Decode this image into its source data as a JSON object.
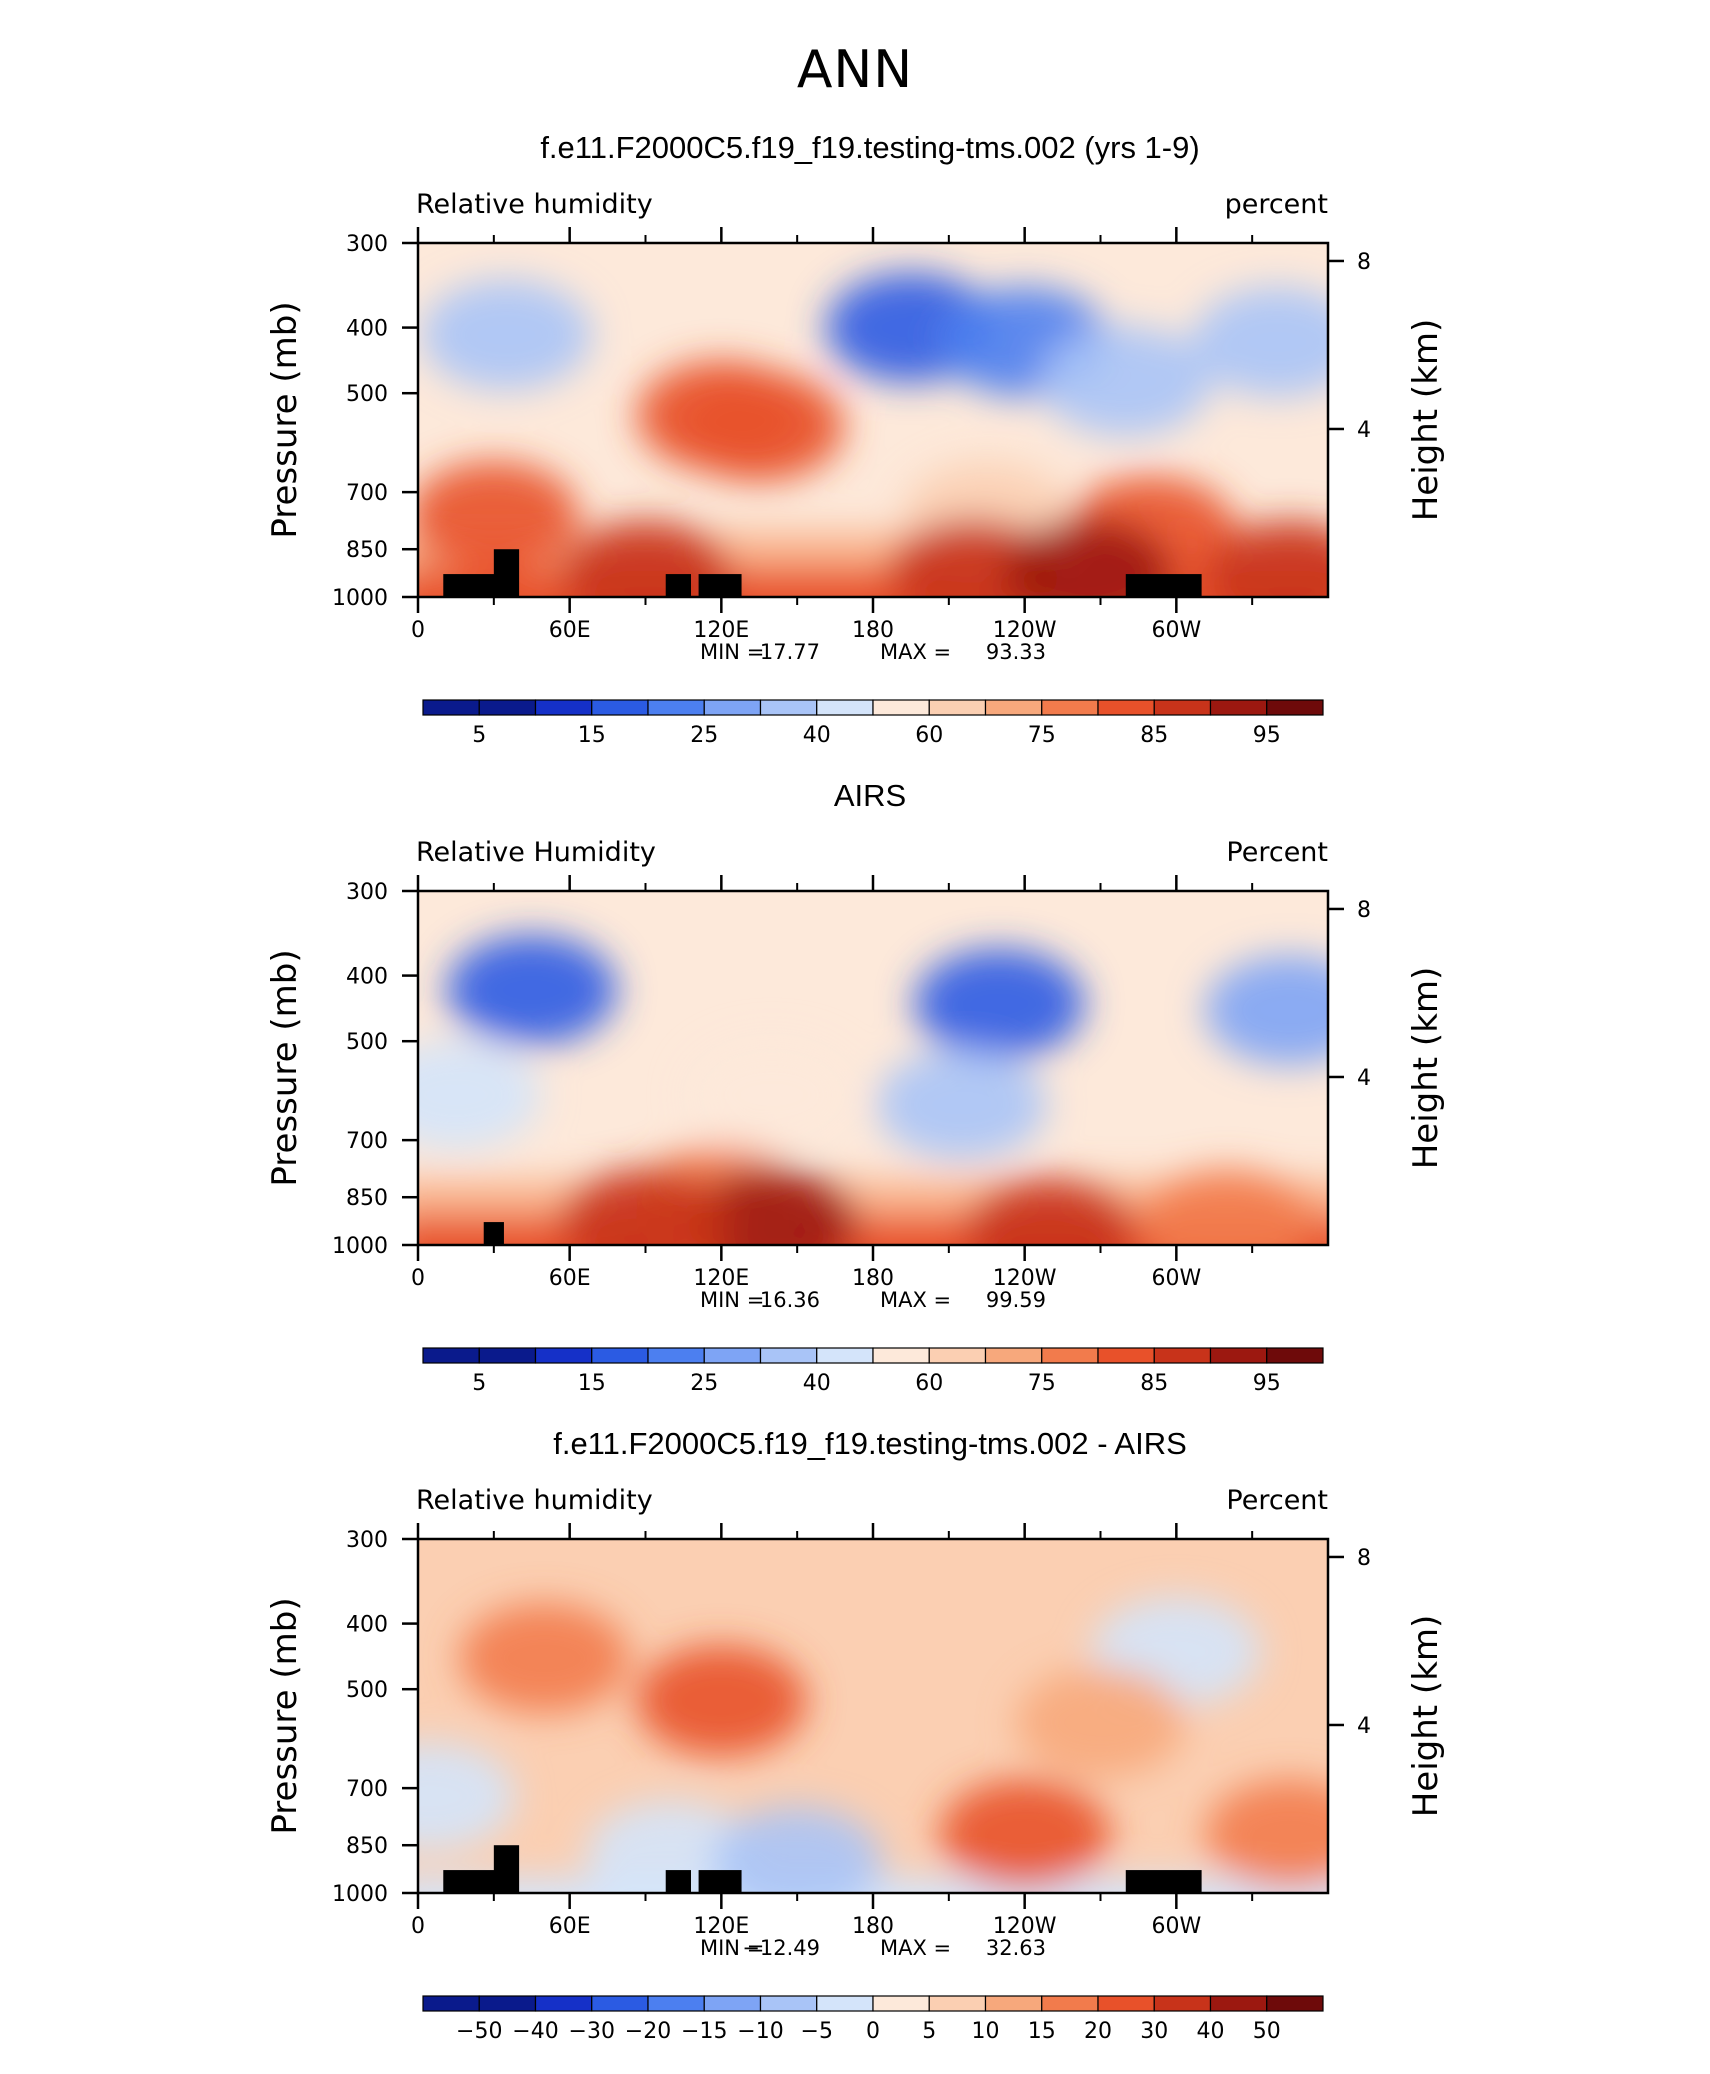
{
  "page": {
    "title": "ANN"
  },
  "colors": {
    "palette": [
      "#0a1a8c",
      "#1530c8",
      "#2b5be3",
      "#4c7ff0",
      "#7ea4f5",
      "#a9c4f7",
      "#d4e4fa",
      "#fde9da",
      "#fbcfb2",
      "#f7a87c",
      "#f27b4c",
      "#e8512a",
      "#c8331a",
      "#9c1810",
      "#6e0a0a"
    ],
    "topography": "#000000"
  },
  "chart_data": [
    {
      "type": "heatmap",
      "title": "f.e11.F2000C5.f19_f19.testing-tms.002 (yrs 1-9)",
      "left_label": "Relative  humidity",
      "right_label": "percent",
      "ylabel": "Pressure  (mb)",
      "y2label": "Height  (km)",
      "x_ticks": [
        "0",
        "60E",
        "120E",
        "180",
        "120W",
        "60W"
      ],
      "y_ticks": [
        "300",
        "400",
        "500",
        "700",
        "850",
        "1000"
      ],
      "y2_ticks": [
        "8",
        "4"
      ],
      "min_label": "MIN =",
      "min_value": "17.77",
      "max_label": "MAX =",
      "max_value": "93.33",
      "colorbar_labels": [
        "5",
        "15",
        "25",
        "40",
        "60",
        "75",
        "85",
        "95"
      ],
      "features": [
        {
          "lon": 195,
          "p": 400,
          "level": 2
        },
        {
          "lon": 240,
          "p": 420,
          "level": 3
        },
        {
          "lon": 280,
          "p": 480,
          "level": 5
        },
        {
          "lon": 340,
          "p": 420,
          "level": 5
        },
        {
          "lon": 35,
          "p": 410,
          "level": 5
        },
        {
          "lon": 120,
          "p": 540,
          "level": 11
        },
        {
          "lon": 135,
          "p": 560,
          "level": 11
        },
        {
          "lon": 225,
          "p": 760,
          "level": 8
        },
        {
          "lon": 30,
          "p": 760,
          "level": 11
        },
        {
          "lon": 290,
          "p": 800,
          "level": 11
        },
        {
          "lon": 90,
          "p": 930,
          "level": 12
        },
        {
          "lon": 220,
          "p": 925,
          "level": 12
        },
        {
          "lon": 265,
          "p": 925,
          "level": 13
        },
        {
          "lon": 345,
          "p": 930,
          "level": 12
        }
      ],
      "topo": [
        {
          "lon0": 10,
          "lon1": 32,
          "p": 925
        },
        {
          "lon0": 30,
          "lon1": 40,
          "p": 850
        },
        {
          "lon0": 98,
          "lon1": 108,
          "p": 925
        },
        {
          "lon0": 111,
          "lon1": 128,
          "p": 925
        },
        {
          "lon0": 280,
          "lon1": 310,
          "p": 925
        }
      ]
    },
    {
      "type": "heatmap",
      "title": "AIRS",
      "left_label": "Relative  Humidity",
      "right_label": "Percent",
      "ylabel": "Pressure  (mb)",
      "y2label": "Height  (km)",
      "x_ticks": [
        "0",
        "60E",
        "120E",
        "180",
        "120W",
        "60W"
      ],
      "y_ticks": [
        "300",
        "400",
        "500",
        "700",
        "850",
        "1000"
      ],
      "y2_ticks": [
        "8",
        "4"
      ],
      "min_label": "MIN =",
      "min_value": "16.36",
      "max_label": "MAX =",
      "max_value": "99.59",
      "colorbar_labels": [
        "5",
        "15",
        "25",
        "40",
        "60",
        "75",
        "85",
        "95"
      ],
      "features": [
        {
          "lon": 230,
          "p": 440,
          "level": 2
        },
        {
          "lon": 215,
          "p": 620,
          "level": 5
        },
        {
          "lon": 45,
          "p": 420,
          "level": 2
        },
        {
          "lon": 345,
          "p": 450,
          "level": 4
        },
        {
          "lon": 15,
          "p": 600,
          "level": 6
        },
        {
          "lon": 140,
          "p": 600,
          "level": 7
        },
        {
          "lon": 120,
          "p": 860,
          "level": 10
        },
        {
          "lon": 140,
          "p": 930,
          "level": 13
        },
        {
          "lon": 90,
          "p": 930,
          "level": 12
        },
        {
          "lon": 250,
          "p": 960,
          "level": 12
        },
        {
          "lon": 320,
          "p": 930,
          "level": 10
        }
      ],
      "topo": [
        {
          "lon0": 26,
          "lon1": 34,
          "p": 925
        }
      ]
    },
    {
      "type": "heatmap",
      "title": "f.e11.F2000C5.f19_f19.testing-tms.002 - AIRS",
      "left_label": "Relative  humidity",
      "right_label": "Percent",
      "ylabel": "Pressure  (mb)",
      "y2label": "Height  (km)",
      "x_ticks": [
        "0",
        "60E",
        "120E",
        "180",
        "120W",
        "60W"
      ],
      "y_ticks": [
        "300",
        "400",
        "500",
        "700",
        "850",
        "1000"
      ],
      "y2_ticks": [
        "8",
        "4"
      ],
      "min_label": "MIN =",
      "min_value": "−12.49",
      "max_label": "MAX =",
      "max_value": "32.63",
      "colorbar_labels": [
        "−50",
        "−40",
        "−30",
        "−20",
        "−15",
        "−10",
        "−5",
        "0",
        "5",
        "10",
        "15",
        "20",
        "30",
        "40",
        "50"
      ],
      "features": [
        {
          "lon": 120,
          "p": 520,
          "level": 11
        },
        {
          "lon": 50,
          "p": 450,
          "level": 10
        },
        {
          "lon": 240,
          "p": 820,
          "level": 11
        },
        {
          "lon": 300,
          "p": 440,
          "level": 6
        },
        {
          "lon": 100,
          "p": 880,
          "level": 6
        },
        {
          "lon": 150,
          "p": 900,
          "level": 5
        },
        {
          "lon": 5,
          "p": 720,
          "level": 6
        },
        {
          "lon": 270,
          "p": 560,
          "level": 9
        },
        {
          "lon": 345,
          "p": 820,
          "level": 10
        }
      ],
      "topo": [
        {
          "lon0": 10,
          "lon1": 32,
          "p": 925
        },
        {
          "lon0": 30,
          "lon1": 40,
          "p": 850
        },
        {
          "lon0": 98,
          "lon1": 108,
          "p": 925
        },
        {
          "lon0": 111,
          "lon1": 128,
          "p": 925
        },
        {
          "lon0": 280,
          "lon1": 310,
          "p": 925
        }
      ]
    }
  ]
}
